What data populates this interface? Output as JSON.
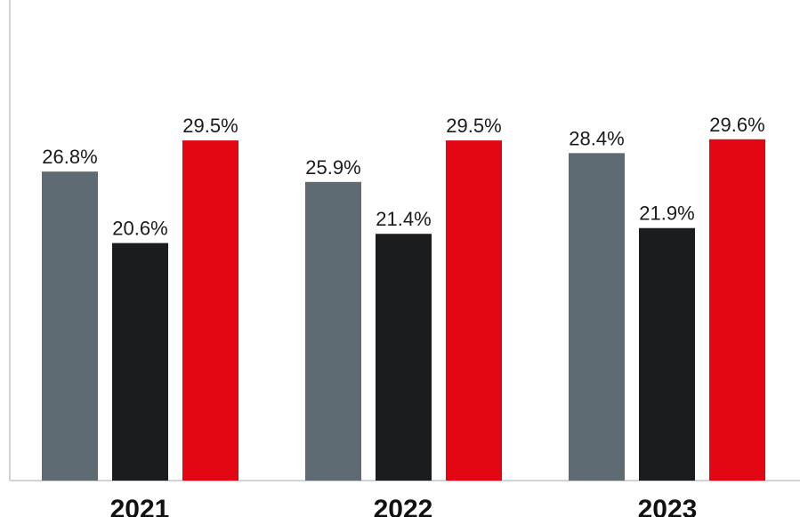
{
  "chart_data": {
    "type": "bar",
    "categories": [
      "2021",
      "2022",
      "2023"
    ],
    "series": [
      {
        "values": [
          26.8,
          25.9,
          28.4
        ],
        "color": "#5e6b73"
      },
      {
        "values": [
          20.6,
          21.4,
          21.9
        ],
        "color": "#1b1c1e"
      },
      {
        "values": [
          29.5,
          29.5,
          29.6
        ],
        "color": "#e30613"
      }
    ],
    "value_labels": [
      [
        "26.8%",
        "25.9%",
        "28.4%"
      ],
      [
        "20.6%",
        "21.4%",
        "21.9%"
      ],
      [
        "29.5%",
        "29.5%",
        "29.6%"
      ]
    ],
    "title": "",
    "xlabel": "",
    "ylabel": "",
    "ylim": [
      0,
      40
    ],
    "grid": false,
    "legend": "none",
    "axis_color": "#cfd4d8"
  }
}
